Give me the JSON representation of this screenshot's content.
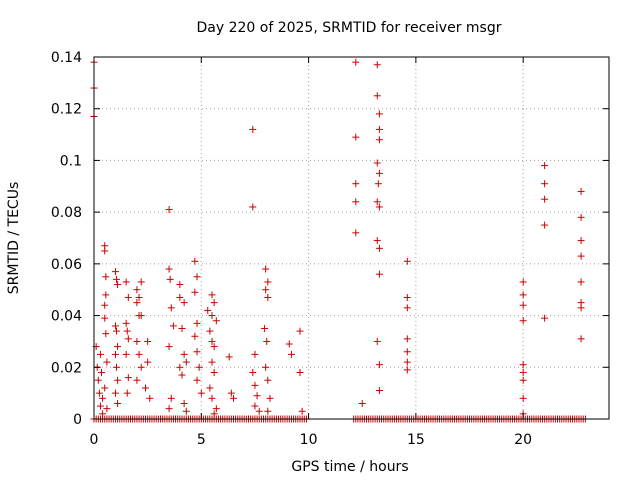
{
  "chart_data": {
    "type": "scatter",
    "title": "Day 220 of 2025, SRMTID for receiver msgr",
    "xlabel": "GPS time / hours",
    "ylabel": "SRMTID / TECUs",
    "xlim": [
      0,
      24
    ],
    "ylim": [
      0,
      0.14
    ],
    "xticks": [
      0,
      5,
      10,
      15,
      20
    ],
    "xtick_labels": [
      "0",
      "5",
      "10",
      "15",
      "20"
    ],
    "yticks": [
      0,
      0.02,
      0.04,
      0.06,
      0.08,
      0.1,
      0.12,
      0.14
    ],
    "ytick_labels": [
      "0",
      "0.02",
      "0.04",
      "0.06",
      "0.08",
      "0.1",
      "0.12",
      "0.14"
    ],
    "grid": true,
    "marker": "+",
    "color": "#cc0000",
    "series": [
      {
        "name": "SRMTID",
        "points": [
          [
            0.0,
            0.138
          ],
          [
            0.0,
            0.128
          ],
          [
            0.0,
            0.117
          ],
          [
            0.1,
            0.028
          ],
          [
            0.15,
            0.02
          ],
          [
            0.2,
            0.015
          ],
          [
            0.25,
            0.01
          ],
          [
            0.3,
            0.025
          ],
          [
            0.3,
            0.005
          ],
          [
            0.35,
            0.018
          ],
          [
            0.4,
            0.008
          ],
          [
            0.4,
            0.002
          ],
          [
            0.5,
            0.067
          ],
          [
            0.5,
            0.065
          ],
          [
            0.55,
            0.055
          ],
          [
            0.5,
            0.044
          ],
          [
            0.55,
            0.048
          ],
          [
            0.5,
            0.039
          ],
          [
            0.55,
            0.033
          ],
          [
            0.6,
            0.022
          ],
          [
            0.5,
            0.012
          ],
          [
            0.6,
            0.004
          ],
          [
            1.0,
            0.057
          ],
          [
            1.05,
            0.054
          ],
          [
            1.1,
            0.052
          ],
          [
            1.0,
            0.036
          ],
          [
            1.05,
            0.034
          ],
          [
            1.1,
            0.028
          ],
          [
            1.0,
            0.025
          ],
          [
            1.05,
            0.02
          ],
          [
            1.1,
            0.015
          ],
          [
            1.0,
            0.01
          ],
          [
            1.1,
            0.006
          ],
          [
            1.5,
            0.053
          ],
          [
            1.6,
            0.047
          ],
          [
            1.5,
            0.037
          ],
          [
            1.55,
            0.034
          ],
          [
            1.6,
            0.031
          ],
          [
            1.5,
            0.025
          ],
          [
            1.6,
            0.016
          ],
          [
            1.55,
            0.01
          ],
          [
            2.0,
            0.05
          ],
          [
            2.1,
            0.047
          ],
          [
            2.2,
            0.053
          ],
          [
            2.0,
            0.045
          ],
          [
            2.1,
            0.04
          ],
          [
            2.2,
            0.04
          ],
          [
            2.0,
            0.03
          ],
          [
            2.1,
            0.025
          ],
          [
            2.2,
            0.02
          ],
          [
            2.0,
            0.015
          ],
          [
            2.5,
            0.03
          ],
          [
            2.5,
            0.022
          ],
          [
            2.4,
            0.012
          ],
          [
            2.6,
            0.008
          ],
          [
            3.5,
            0.081
          ],
          [
            3.5,
            0.058
          ],
          [
            3.55,
            0.054
          ],
          [
            3.6,
            0.043
          ],
          [
            3.7,
            0.036
          ],
          [
            3.5,
            0.028
          ],
          [
            3.6,
            0.008
          ],
          [
            3.5,
            0.004
          ],
          [
            4.0,
            0.052
          ],
          [
            4.0,
            0.047
          ],
          [
            4.2,
            0.045
          ],
          [
            4.1,
            0.035
          ],
          [
            4.0,
            0.02
          ],
          [
            4.2,
            0.025
          ],
          [
            4.3,
            0.022
          ],
          [
            4.1,
            0.017
          ],
          [
            4.2,
            0.006
          ],
          [
            4.3,
            0.003
          ],
          [
            4.7,
            0.061
          ],
          [
            4.8,
            0.055
          ],
          [
            4.7,
            0.049
          ],
          [
            4.8,
            0.037
          ],
          [
            4.7,
            0.032
          ],
          [
            4.8,
            0.026
          ],
          [
            4.9,
            0.02
          ],
          [
            4.8,
            0.015
          ],
          [
            5.0,
            0.01
          ],
          [
            5.3,
            0.042
          ],
          [
            5.5,
            0.048
          ],
          [
            5.6,
            0.045
          ],
          [
            5.5,
            0.04
          ],
          [
            5.7,
            0.038
          ],
          [
            5.4,
            0.034
          ],
          [
            5.5,
            0.03
          ],
          [
            5.6,
            0.028
          ],
          [
            5.5,
            0.022
          ],
          [
            5.6,
            0.018
          ],
          [
            5.4,
            0.012
          ],
          [
            5.5,
            0.008
          ],
          [
            5.7,
            0.004
          ],
          [
            5.6,
            0.002
          ],
          [
            6.3,
            0.024
          ],
          [
            6.4,
            0.01
          ],
          [
            6.5,
            0.008
          ],
          [
            7.4,
            0.112
          ],
          [
            7.4,
            0.082
          ],
          [
            7.5,
            0.025
          ],
          [
            7.4,
            0.018
          ],
          [
            7.5,
            0.013
          ],
          [
            7.6,
            0.009
          ],
          [
            7.5,
            0.005
          ],
          [
            7.7,
            0.003
          ],
          [
            8.0,
            0.058
          ],
          [
            8.1,
            0.053
          ],
          [
            8.0,
            0.05
          ],
          [
            8.1,
            0.047
          ],
          [
            7.95,
            0.035
          ],
          [
            8.05,
            0.03
          ],
          [
            8.0,
            0.02
          ],
          [
            8.1,
            0.015
          ],
          [
            8.2,
            0.008
          ],
          [
            8.1,
            0.003
          ],
          [
            9.1,
            0.029
          ],
          [
            9.2,
            0.025
          ],
          [
            9.6,
            0.034
          ],
          [
            9.6,
            0.018
          ],
          [
            9.7,
            0.003
          ],
          [
            12.2,
            0.138
          ],
          [
            12.2,
            0.109
          ],
          [
            12.2,
            0.091
          ],
          [
            12.2,
            0.084
          ],
          [
            12.2,
            0.072
          ],
          [
            12.5,
            0.006
          ],
          [
            13.2,
            0.137
          ],
          [
            13.2,
            0.125
          ],
          [
            13.3,
            0.118
          ],
          [
            13.3,
            0.112
          ],
          [
            13.3,
            0.108
          ],
          [
            13.2,
            0.099
          ],
          [
            13.3,
            0.095
          ],
          [
            13.25,
            0.091
          ],
          [
            13.2,
            0.084
          ],
          [
            13.3,
            0.082
          ],
          [
            13.2,
            0.069
          ],
          [
            13.3,
            0.066
          ],
          [
            13.3,
            0.056
          ],
          [
            13.2,
            0.03
          ],
          [
            13.3,
            0.021
          ],
          [
            13.3,
            0.011
          ],
          [
            14.6,
            0.061
          ],
          [
            14.6,
            0.047
          ],
          [
            14.6,
            0.043
          ],
          [
            14.6,
            0.031
          ],
          [
            14.6,
            0.026
          ],
          [
            14.6,
            0.022
          ],
          [
            14.6,
            0.019
          ],
          [
            20.0,
            0.053
          ],
          [
            20.0,
            0.048
          ],
          [
            20.0,
            0.044
          ],
          [
            20.0,
            0.038
          ],
          [
            20.0,
            0.021
          ],
          [
            20.0,
            0.018
          ],
          [
            20.0,
            0.015
          ],
          [
            20.0,
            0.008
          ],
          [
            20.0,
            0.002
          ],
          [
            21.0,
            0.098
          ],
          [
            21.0,
            0.091
          ],
          [
            21.0,
            0.085
          ],
          [
            21.0,
            0.075
          ],
          [
            21.0,
            0.039
          ],
          [
            22.7,
            0.088
          ],
          [
            22.7,
            0.078
          ],
          [
            22.7,
            0.069
          ],
          [
            22.7,
            0.063
          ],
          [
            22.7,
            0.053
          ],
          [
            22.7,
            0.045
          ],
          [
            22.7,
            0.043
          ],
          [
            22.7,
            0.031
          ]
        ],
        "zero_segments": [
          [
            0.0,
            9.9
          ],
          [
            12.1,
            22.9
          ]
        ],
        "zero_step": 0.1
      }
    ]
  }
}
